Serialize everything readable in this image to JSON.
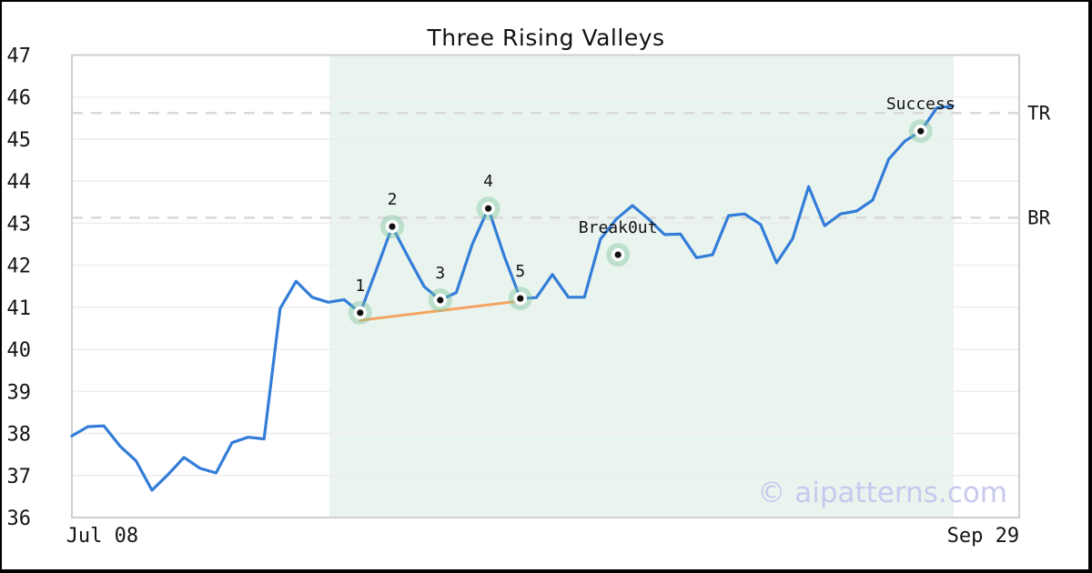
{
  "page": {
    "title": "Three Rising Valleys"
  },
  "chart_data": {
    "type": "line",
    "title": "Three Rising Valleys",
    "watermark": "© aipatterns.com",
    "xlabel": "",
    "ylabel": "",
    "grid": true,
    "legend": false,
    "ylim": [
      36,
      47
    ],
    "y_ticks": [
      47,
      46,
      45,
      44,
      43,
      42,
      41,
      40,
      39,
      38,
      37,
      36
    ],
    "x_ticks": [
      {
        "label": "Jul 08",
        "index": 1.9
      },
      {
        "label": "Sep 29",
        "index": 56.9
      }
    ],
    "x_index_max": 59.15,
    "series": [
      {
        "name": "price",
        "color": "#337dd8",
        "values": [
          37.94,
          38.16,
          38.18,
          37.7,
          37.35,
          36.65,
          37.02,
          37.43,
          37.17,
          37.06,
          37.78,
          37.91,
          37.87,
          40.97,
          41.62,
          41.24,
          41.12,
          41.18,
          40.87,
          41.88,
          42.92,
          42.19,
          41.49,
          41.17,
          41.35,
          42.5,
          43.35,
          42.21,
          41.21,
          41.23,
          41.78,
          41.24,
          41.24,
          42.62,
          43.1,
          43.42,
          43.1,
          42.73,
          42.74,
          42.18,
          42.25,
          43.18,
          43.22,
          42.97,
          42.06,
          42.63,
          43.87,
          42.94,
          43.22,
          43.29,
          43.55,
          44.52,
          44.95,
          45.19,
          45.74,
          45.79
        ]
      }
    ],
    "levels": [
      {
        "label": "TR",
        "value": 45.62
      },
      {
        "label": "BR",
        "value": 43.13
      }
    ],
    "markers": [
      {
        "label": "1",
        "index": 18,
        "value": 40.87
      },
      {
        "label": "2",
        "index": 20,
        "value": 42.92
      },
      {
        "label": "3",
        "index": 23,
        "value": 41.17
      },
      {
        "label": "4",
        "index": 26,
        "value": 43.35
      },
      {
        "label": "5",
        "index": 28,
        "value": 41.21
      },
      {
        "label": "Break0ut",
        "index": 34.1,
        "value": 42.25
      },
      {
        "label": "Success",
        "index": 53,
        "value": 45.19
      }
    ],
    "trendline": {
      "from_index": 18,
      "from_value": 40.69,
      "to_index": 28,
      "to_value": 41.15,
      "color": "#f4a460"
    },
    "zone": {
      "start_index": 16.08,
      "end_index": 55.06,
      "color": "#eaf4ef"
    },
    "marker_style": {
      "halo_color": "rgba(125,195,155,0.42)",
      "ring_color": "#ffffff",
      "dot_color": "#111111"
    },
    "grid_color": "#ededed",
    "border_color": "#cfcfcf",
    "dashed_color": "#d9d9d9"
  }
}
